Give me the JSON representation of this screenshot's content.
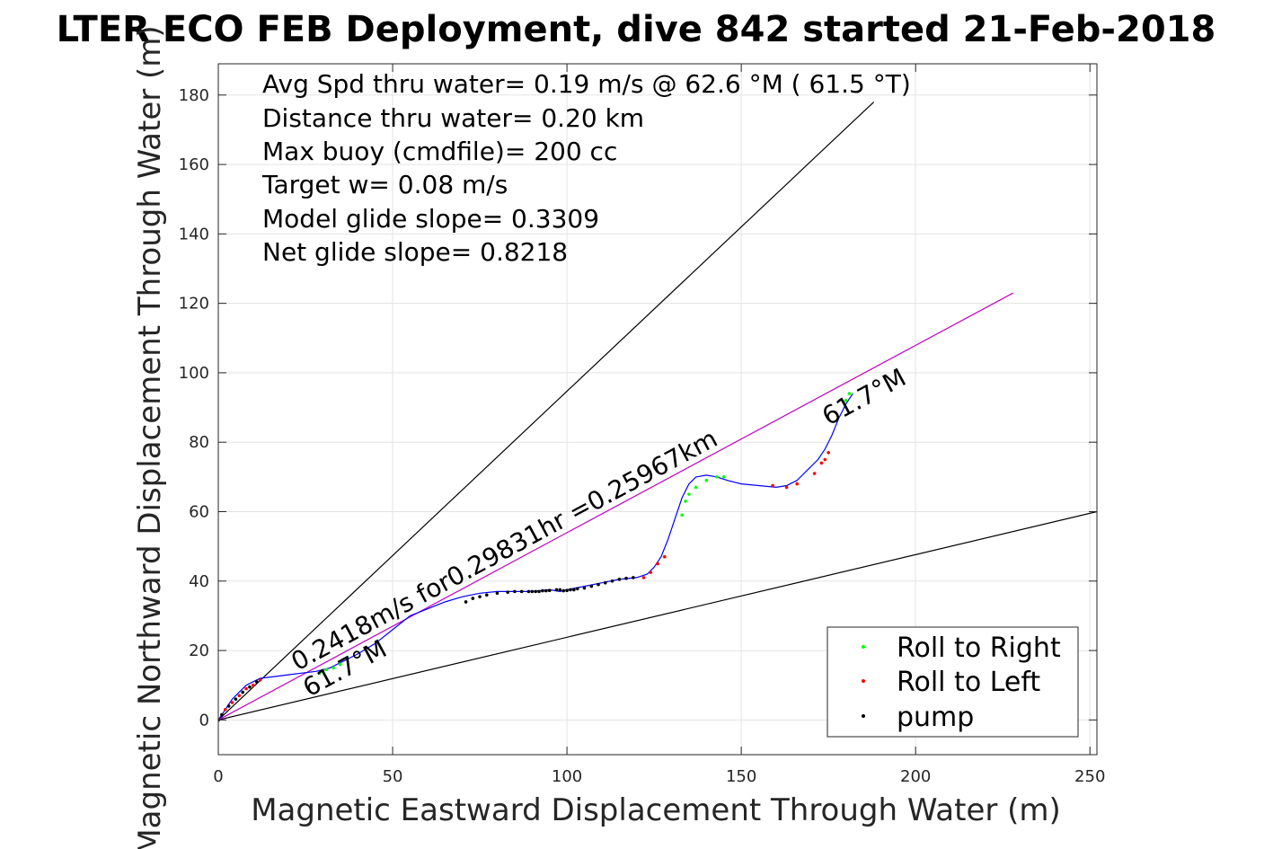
{
  "chart_data": {
    "type": "line",
    "title": "LTER ECO FEB Deployment, dive 842 started 21-Feb-2018",
    "xlabel": "Magnetic Eastward Displacement Through Water (m)",
    "ylabel": "Magnetic Northward Displacement Through Water (m)",
    "xlim": [
      0,
      252
    ],
    "ylim": [
      -10,
      189
    ],
    "xticks": [
      0,
      50,
      100,
      150,
      200,
      250
    ],
    "yticks": [
      0,
      20,
      40,
      60,
      80,
      100,
      120,
      140,
      160,
      180
    ],
    "grid": true,
    "info_lines": [
      "Avg Spd thru water=  0.19 m/s @  62.6 °M ( 61.5 °T)",
      "Distance thru water=  0.20 km",
      "Max buoy (cmdfile)= 200 cc",
      "Target w= 0.08 m/s",
      "Model glide slope= 0.3309",
      "Net glide slope= 0.8218"
    ],
    "annotations": {
      "segment_label": "0.2418m/s for0.29831hr =0.25967km",
      "heading_start": "61.7°M",
      "heading_end": "61.7°M"
    },
    "reference_lines": [
      {
        "name": "envelope-upper",
        "color": "#000000",
        "x": [
          0,
          188
        ],
        "y": [
          0,
          178
        ]
      },
      {
        "name": "envelope-lower",
        "color": "#000000",
        "x": [
          0,
          252
        ],
        "y": [
          0,
          60
        ]
      },
      {
        "name": "mean-track",
        "color": "#c000c0",
        "x": [
          0,
          228
        ],
        "y": [
          0,
          123
        ]
      }
    ],
    "track": {
      "color": "#0000ff",
      "x": [
        0,
        1,
        2,
        3,
        4,
        6,
        8,
        10,
        12,
        16,
        20,
        24,
        28,
        32,
        36,
        40,
        45,
        50,
        55,
        60,
        65,
        70,
        75,
        80,
        85,
        90,
        95,
        98,
        100,
        105,
        110,
        115,
        120,
        123,
        125,
        127,
        129,
        131,
        133,
        135,
        137,
        140,
        143,
        146,
        150,
        155,
        160,
        163,
        166,
        169,
        172,
        174,
        176,
        178,
        180,
        182
      ],
      "y": [
        0,
        1.5,
        3,
        4.5,
        6,
        8,
        10,
        11,
        12,
        12.5,
        13,
        13.5,
        14,
        15,
        17,
        19,
        22,
        26,
        30,
        32,
        34,
        35.5,
        36.5,
        37,
        37,
        37,
        37.5,
        37,
        37.5,
        38.5,
        39.5,
        40.5,
        41,
        42,
        44,
        47,
        52,
        58,
        64,
        68,
        70,
        70.5,
        70,
        69,
        68,
        67.5,
        67,
        67.5,
        69,
        72,
        75,
        78,
        82,
        87,
        91,
        94
      ]
    },
    "series": [
      {
        "name": "Roll to Right",
        "color": "#00ff00",
        "x": [
          0,
          29,
          30,
          31,
          33,
          35,
          133,
          134,
          135,
          137,
          140,
          143,
          145,
          180,
          181
        ],
        "y": [
          0,
          13.5,
          14,
          14.5,
          15,
          16,
          59,
          63,
          65,
          67,
          69,
          70,
          70,
          92,
          94
        ]
      },
      {
        "name": "Roll to Left",
        "color": "#ff0000",
        "x": [
          0,
          2,
          4,
          6,
          8,
          10,
          12,
          122,
          124,
          126,
          128,
          159,
          163,
          166,
          171,
          173,
          174,
          175
        ],
        "y": [
          0,
          3,
          5,
          7,
          9,
          10,
          11.5,
          41,
          42.5,
          45,
          47,
          67.5,
          67,
          68,
          71,
          74,
          75,
          77
        ]
      },
      {
        "name": "pump",
        "color": "#000000",
        "x": [
          0,
          1,
          3,
          5,
          7,
          9,
          11,
          71,
          73,
          75,
          77,
          80,
          83,
          85,
          87,
          89,
          90,
          91,
          92,
          93,
          94,
          95,
          97,
          98,
          99,
          100,
          101,
          102,
          103,
          105,
          107,
          109,
          111,
          113,
          115,
          117,
          119
        ],
        "y": [
          0,
          1.5,
          4,
          6,
          8,
          9.5,
          11,
          34,
          35,
          35.5,
          36,
          36.5,
          36.8,
          37,
          37,
          37,
          37,
          37,
          37,
          37.2,
          37.2,
          37.3,
          37.5,
          37.5,
          37.2,
          37.3,
          37.5,
          37.5,
          37.8,
          38,
          38.5,
          39,
          39.5,
          40,
          40.5,
          40.8,
          41
        ]
      }
    ],
    "legend_position": "bottom-right"
  }
}
